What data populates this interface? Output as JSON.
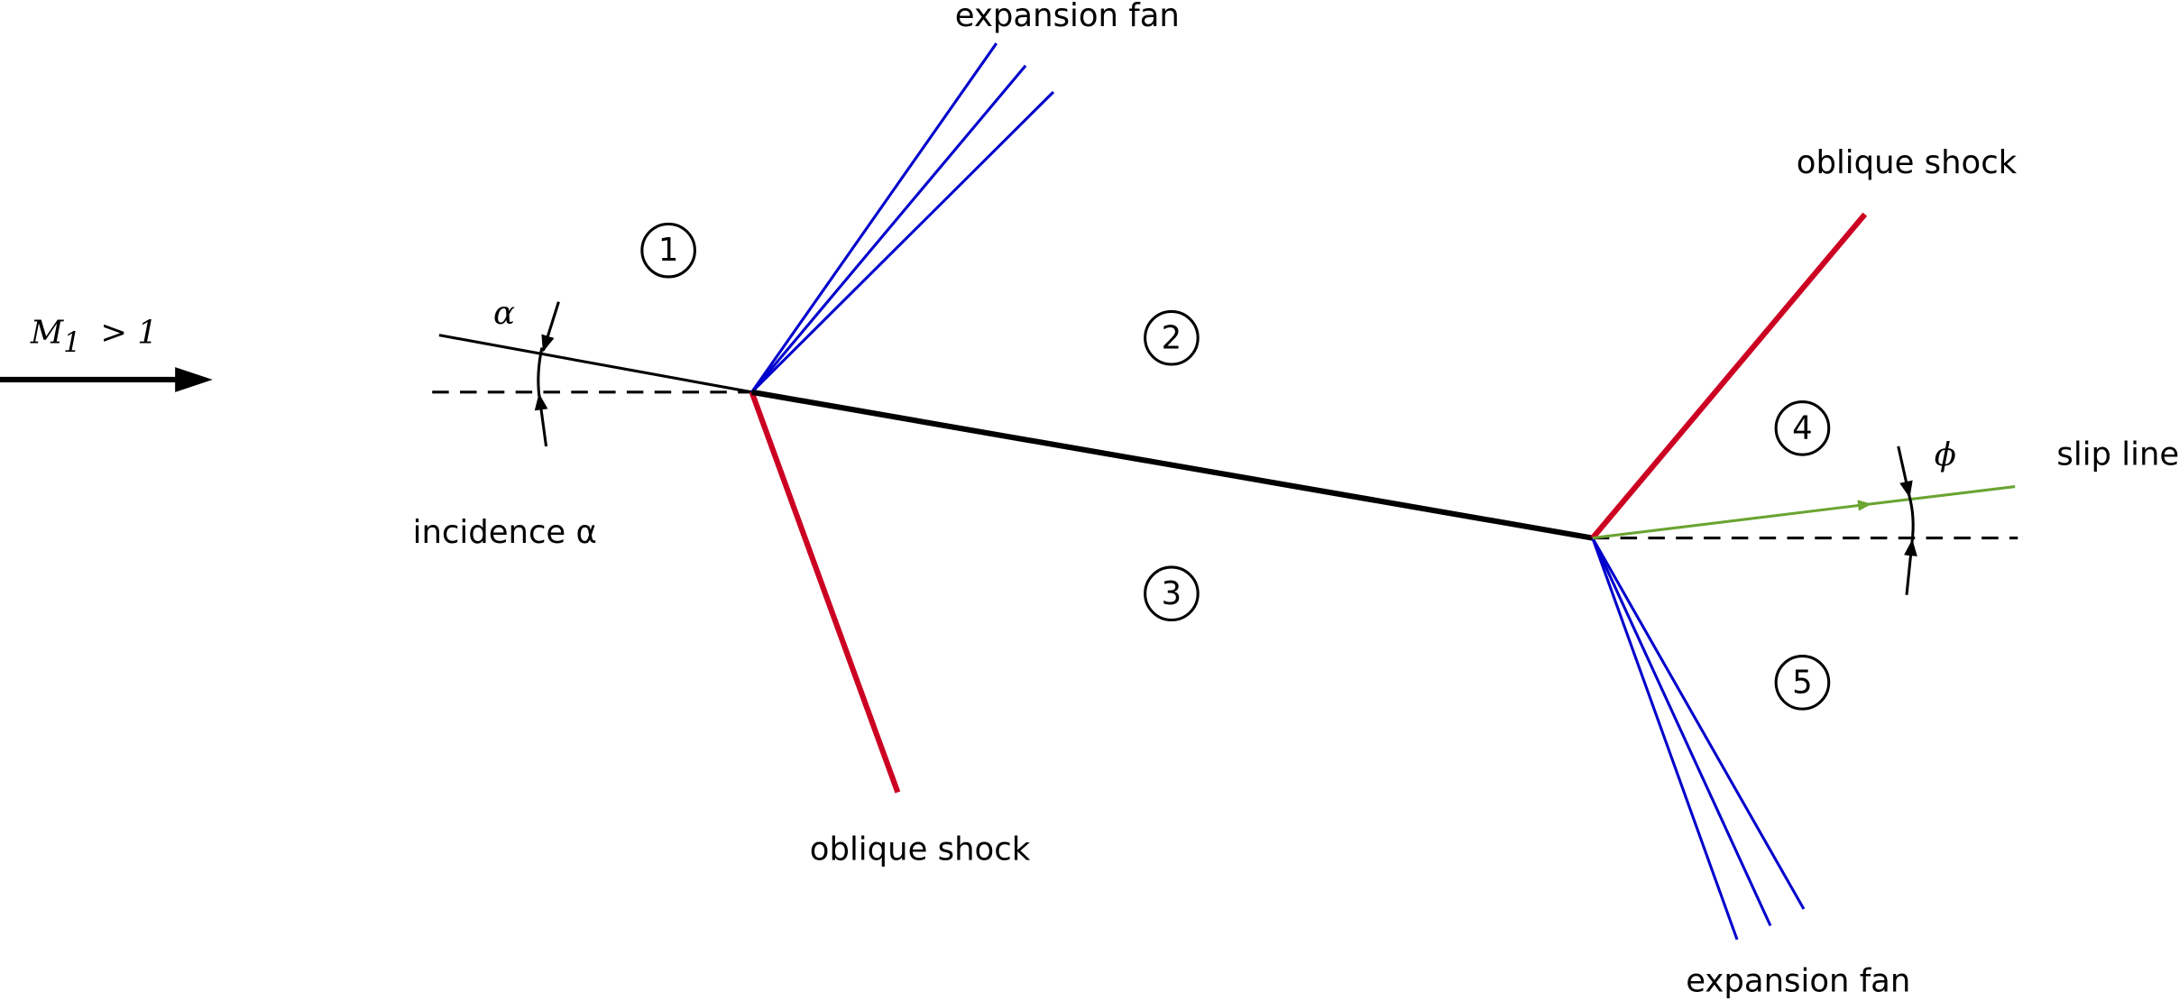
{
  "flow": {
    "symbol": "M",
    "subscript": "1",
    "relation": "> 1"
  },
  "angles": {
    "alpha": "α",
    "incidence": "incidence α",
    "phi": "ϕ"
  },
  "regions": [
    "1",
    "2",
    "3",
    "4",
    "5"
  ],
  "labels": {
    "expansion_fan_top": "expansion fan",
    "oblique_shock_top": "oblique shock",
    "oblique_shock_bottom": "oblique shock",
    "expansion_fan_bottom": "expansion fan",
    "slip_line": "slip line"
  }
}
